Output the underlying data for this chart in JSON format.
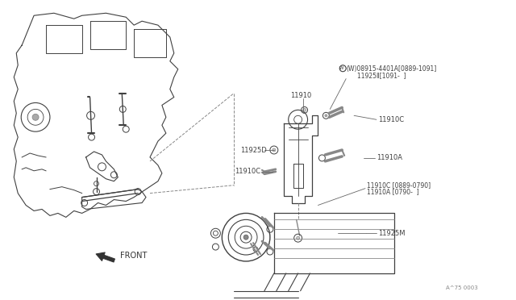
{
  "bg_color": "#ffffff",
  "line_color": "#404040",
  "text_color": "#404040",
  "fig_width": 6.4,
  "fig_height": 3.72,
  "dpi": 100,
  "watermark": "A^75 0003",
  "labels": {
    "W_label": "(W)08915-4401A[0889-1091]",
    "W_label2": "11925Ⅱ[1091-  ]",
    "l11910": "11910",
    "l11910C_top": "11910C",
    "l11910C_mid": "11910C",
    "l11925D": "11925D",
    "l11910A": "11910A",
    "l11910C_bot": "11910C [0889-0790]",
    "l11910A_bot": "11910A [0790-  ]",
    "l11925M": "11925M",
    "front": "FRONT"
  }
}
